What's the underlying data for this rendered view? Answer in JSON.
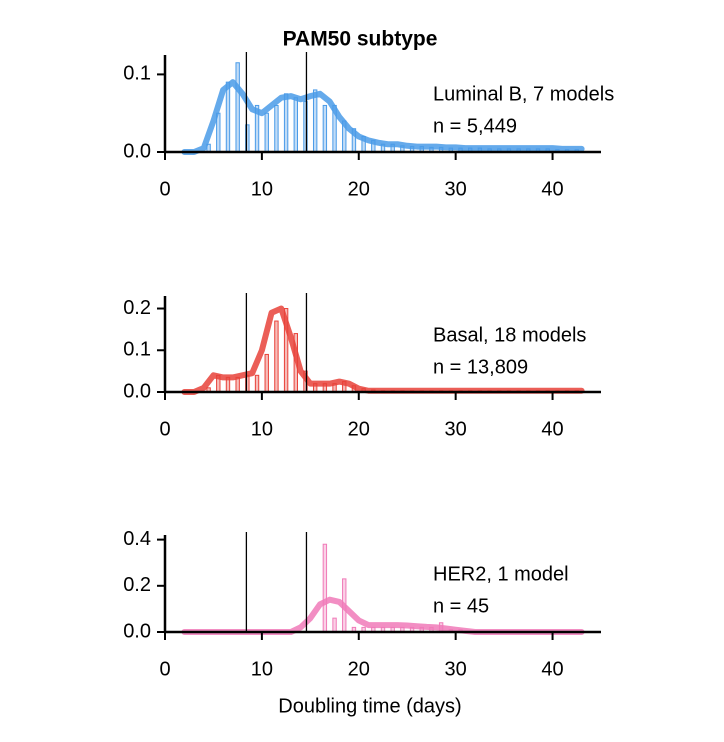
{
  "chart_data": [
    {
      "type": "histogram",
      "title": "PAM50 subtype",
      "color": "#4a9be8",
      "annotation": [
        "Luminal B, 7 models",
        "n = 5,449"
      ],
      "bins": [
        2,
        3,
        4,
        5,
        6,
        7,
        8,
        9,
        10,
        11,
        12,
        13,
        14,
        15,
        16,
        17,
        18,
        19,
        20,
        21,
        22,
        23,
        24,
        25,
        26,
        27,
        28,
        29,
        30,
        31,
        32,
        33,
        34,
        35,
        36,
        37,
        38,
        39,
        40,
        41,
        42,
        43
      ],
      "counts": [
        0,
        0,
        0.01,
        0.05,
        0.09,
        0.115,
        0.035,
        0.06,
        0.05,
        0.06,
        0.075,
        0.07,
        0.065,
        0.08,
        0.06,
        0.06,
        0.04,
        0.03,
        0.02,
        0.015,
        0.01,
        0.01,
        0.008,
        0.007,
        0.007,
        0.006,
        0.006,
        0.005,
        0.005,
        0.005,
        0.005,
        0.004,
        0.004,
        0.004,
        0.004,
        0.004,
        0.004,
        0.004,
        0.003,
        0.003,
        0.003
      ],
      "curve": {
        "x": [
          2,
          3,
          4,
          5,
          6,
          7,
          8,
          9,
          10,
          11,
          12,
          13,
          14,
          15,
          16,
          17,
          18,
          19,
          20,
          21,
          22,
          23,
          24,
          25,
          26,
          27,
          28,
          29,
          30,
          31,
          32,
          33,
          34,
          35,
          36,
          37,
          38,
          39,
          40,
          41,
          42,
          43
        ],
        "values": [
          0,
          0,
          0.005,
          0.04,
          0.08,
          0.09,
          0.075,
          0.055,
          0.05,
          0.06,
          0.07,
          0.072,
          0.068,
          0.072,
          0.075,
          0.065,
          0.045,
          0.03,
          0.02,
          0.015,
          0.012,
          0.01,
          0.01,
          0.008,
          0.007,
          0.007,
          0.007,
          0.006,
          0.006,
          0.005,
          0.005,
          0.005,
          0.005,
          0.005,
          0.005,
          0.005,
          0.005,
          0.005,
          0.005,
          0.004,
          0.004,
          0.004
        ]
      },
      "vlines": [
        8.4,
        14.6
      ],
      "xlim": [
        0,
        45
      ],
      "xticks": [
        0,
        10,
        20,
        30,
        40
      ],
      "ylim": [
        0,
        0.125
      ],
      "yticks": [
        {
          "value": 0,
          "label": "0.0"
        },
        0.1
      ]
    },
    {
      "type": "histogram",
      "color": "#e8423a",
      "annotation": [
        "Basal, 18 models",
        "n = 13,809"
      ],
      "bins": [
        2,
        3,
        4,
        5,
        6,
        7,
        8,
        9,
        10,
        11,
        12,
        13,
        14,
        15,
        16,
        17,
        18,
        19,
        20,
        21,
        22,
        23,
        24,
        25,
        26,
        27,
        28,
        29,
        30,
        31,
        32,
        33,
        34,
        35,
        36,
        37,
        38,
        39,
        40,
        41,
        42,
        43
      ],
      "counts": [
        0,
        0,
        0.01,
        0.04,
        0.035,
        0.035,
        0.04,
        0.04,
        0.09,
        0.17,
        0.2,
        0.14,
        0.05,
        0.02,
        0.02,
        0.02,
        0.025,
        0.015,
        0.008,
        0.005,
        0.003,
        0.003,
        0.003,
        0.003,
        0.003,
        0.003,
        0.003,
        0.003,
        0.003,
        0.003,
        0.003,
        0.003,
        0.003,
        0.003,
        0.003,
        0.003,
        0.003,
        0.003,
        0.003,
        0.003,
        0.003
      ],
      "curve": {
        "x": [
          2,
          3,
          4,
          5,
          6,
          7,
          8,
          9,
          10,
          11,
          12,
          13,
          14,
          15,
          16,
          17,
          18,
          19,
          20,
          21,
          22,
          23,
          24,
          25,
          26,
          27,
          28,
          29,
          30,
          31,
          32,
          33,
          34,
          35,
          36,
          37,
          38,
          39,
          40,
          41,
          42,
          43
        ],
        "values": [
          0,
          0,
          0.01,
          0.04,
          0.035,
          0.035,
          0.04,
          0.045,
          0.1,
          0.19,
          0.2,
          0.13,
          0.05,
          0.02,
          0.02,
          0.02,
          0.025,
          0.02,
          0.008,
          0.003,
          0.003,
          0.003,
          0.003,
          0.003,
          0.003,
          0.003,
          0.003,
          0.003,
          0.003,
          0.003,
          0.003,
          0.003,
          0.003,
          0.003,
          0.003,
          0.003,
          0.003,
          0.003,
          0.003,
          0.003,
          0.003,
          0.003
        ]
      },
      "vlines": [
        8.4,
        14.6
      ],
      "xlim": [
        0,
        45
      ],
      "xticks": [
        0,
        10,
        20,
        30,
        40
      ],
      "ylim": [
        0,
        0.23
      ],
      "yticks": [
        {
          "value": 0,
          "label": "0.0"
        },
        0.1,
        0.2
      ]
    },
    {
      "type": "histogram",
      "color": "#f07ab8",
      "x_label": "Doubling time (days)",
      "annotation": [
        "HER2, 1 model",
        "n = 45"
      ],
      "bins": [
        2,
        3,
        4,
        5,
        6,
        7,
        8,
        9,
        10,
        11,
        12,
        13,
        14,
        15,
        16,
        17,
        18,
        19,
        20,
        21,
        22,
        23,
        24,
        25,
        26,
        27,
        28,
        29,
        30,
        31,
        32,
        33,
        34,
        35,
        36,
        37,
        38,
        39,
        40,
        41,
        42,
        43
      ],
      "counts": [
        0,
        0,
        0,
        0,
        0,
        0,
        0,
        0,
        0,
        0,
        0,
        0,
        0,
        0,
        0.38,
        0.06,
        0.23,
        0.02,
        0.02,
        0.02,
        0.02,
        0.02,
        0.02,
        0.02,
        0.02,
        0.02,
        0.04,
        0.01,
        0.01,
        0,
        0,
        0,
        0,
        0,
        0,
        0,
        0,
        0,
        0,
        0,
        0
      ],
      "curve": {
        "x": [
          2,
          3,
          4,
          5,
          6,
          7,
          8,
          9,
          10,
          11,
          12,
          13,
          14,
          15,
          16,
          17,
          18,
          19,
          20,
          21,
          22,
          23,
          24,
          25,
          26,
          27,
          28,
          29,
          30,
          31,
          32,
          33,
          34,
          35,
          36,
          37,
          38,
          39,
          40,
          41,
          42,
          43
        ],
        "values": [
          0,
          0,
          0,
          0,
          0,
          0,
          0,
          0,
          0,
          0,
          0,
          0,
          0.02,
          0.06,
          0.12,
          0.14,
          0.13,
          0.09,
          0.05,
          0.03,
          0.03,
          0.03,
          0.03,
          0.028,
          0.025,
          0.022,
          0.02,
          0.015,
          0.01,
          0.005,
          0,
          0,
          0,
          0,
          0,
          0,
          0,
          0,
          0,
          0,
          0,
          0
        ]
      },
      "vlines": [
        8.4,
        14.6
      ],
      "xlim": [
        0,
        45
      ],
      "xticks": [
        0,
        10,
        20,
        30,
        40
      ],
      "ylim": [
        0,
        0.42
      ],
      "yticks": [
        {
          "value": 0,
          "label": "0.0"
        },
        0.2,
        0.4
      ]
    }
  ]
}
